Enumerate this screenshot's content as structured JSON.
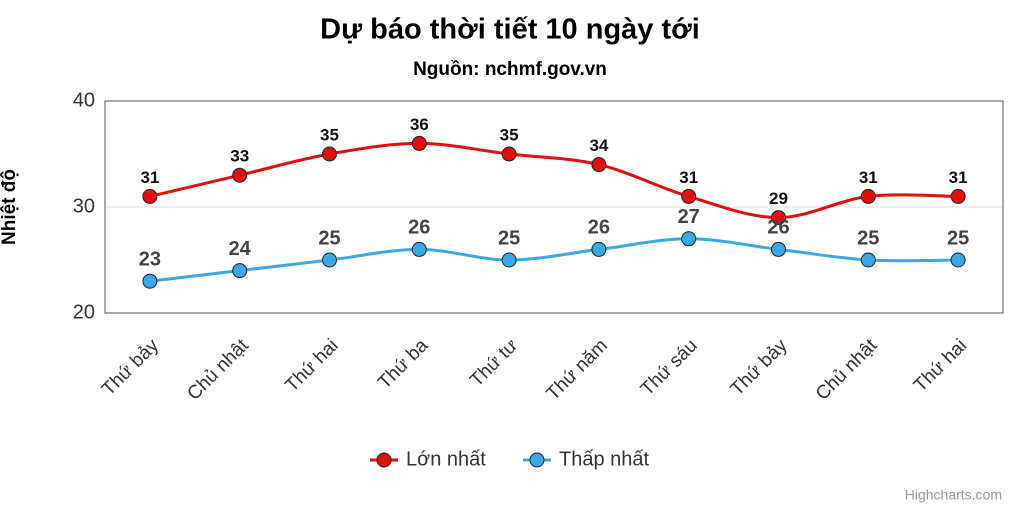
{
  "chart_data": {
    "type": "line",
    "title": "Dự báo thời tiết 10 ngày tới",
    "subtitle": "Nguồn: nchmf.gov.vn",
    "y_axis_label": "Nhiệt độ",
    "categories": [
      "Thứ bảy",
      "Chủ nhật",
      "Thứ hai",
      "Thứ ba",
      "Thứ tư",
      "Thứ năm",
      "Thứ sáu",
      "Thứ bảy",
      "Chủ nhật",
      "Thứ hai"
    ],
    "series": [
      {
        "name": "Lớn nhất",
        "color": "#e01010",
        "values": [
          31,
          33,
          35,
          36,
          35,
          34,
          31,
          29,
          31,
          31
        ]
      },
      {
        "name": "Thấp nhất",
        "color": "#3aa8e8",
        "values": [
          23,
          24,
          25,
          26,
          25,
          26,
          27,
          26,
          25,
          25
        ]
      }
    ],
    "ylim": [
      20,
      40
    ],
    "yticks": [
      20,
      30,
      40
    ],
    "grid": true,
    "smooth": true,
    "legend_position": "bottom",
    "credits": "Highcharts.com"
  }
}
